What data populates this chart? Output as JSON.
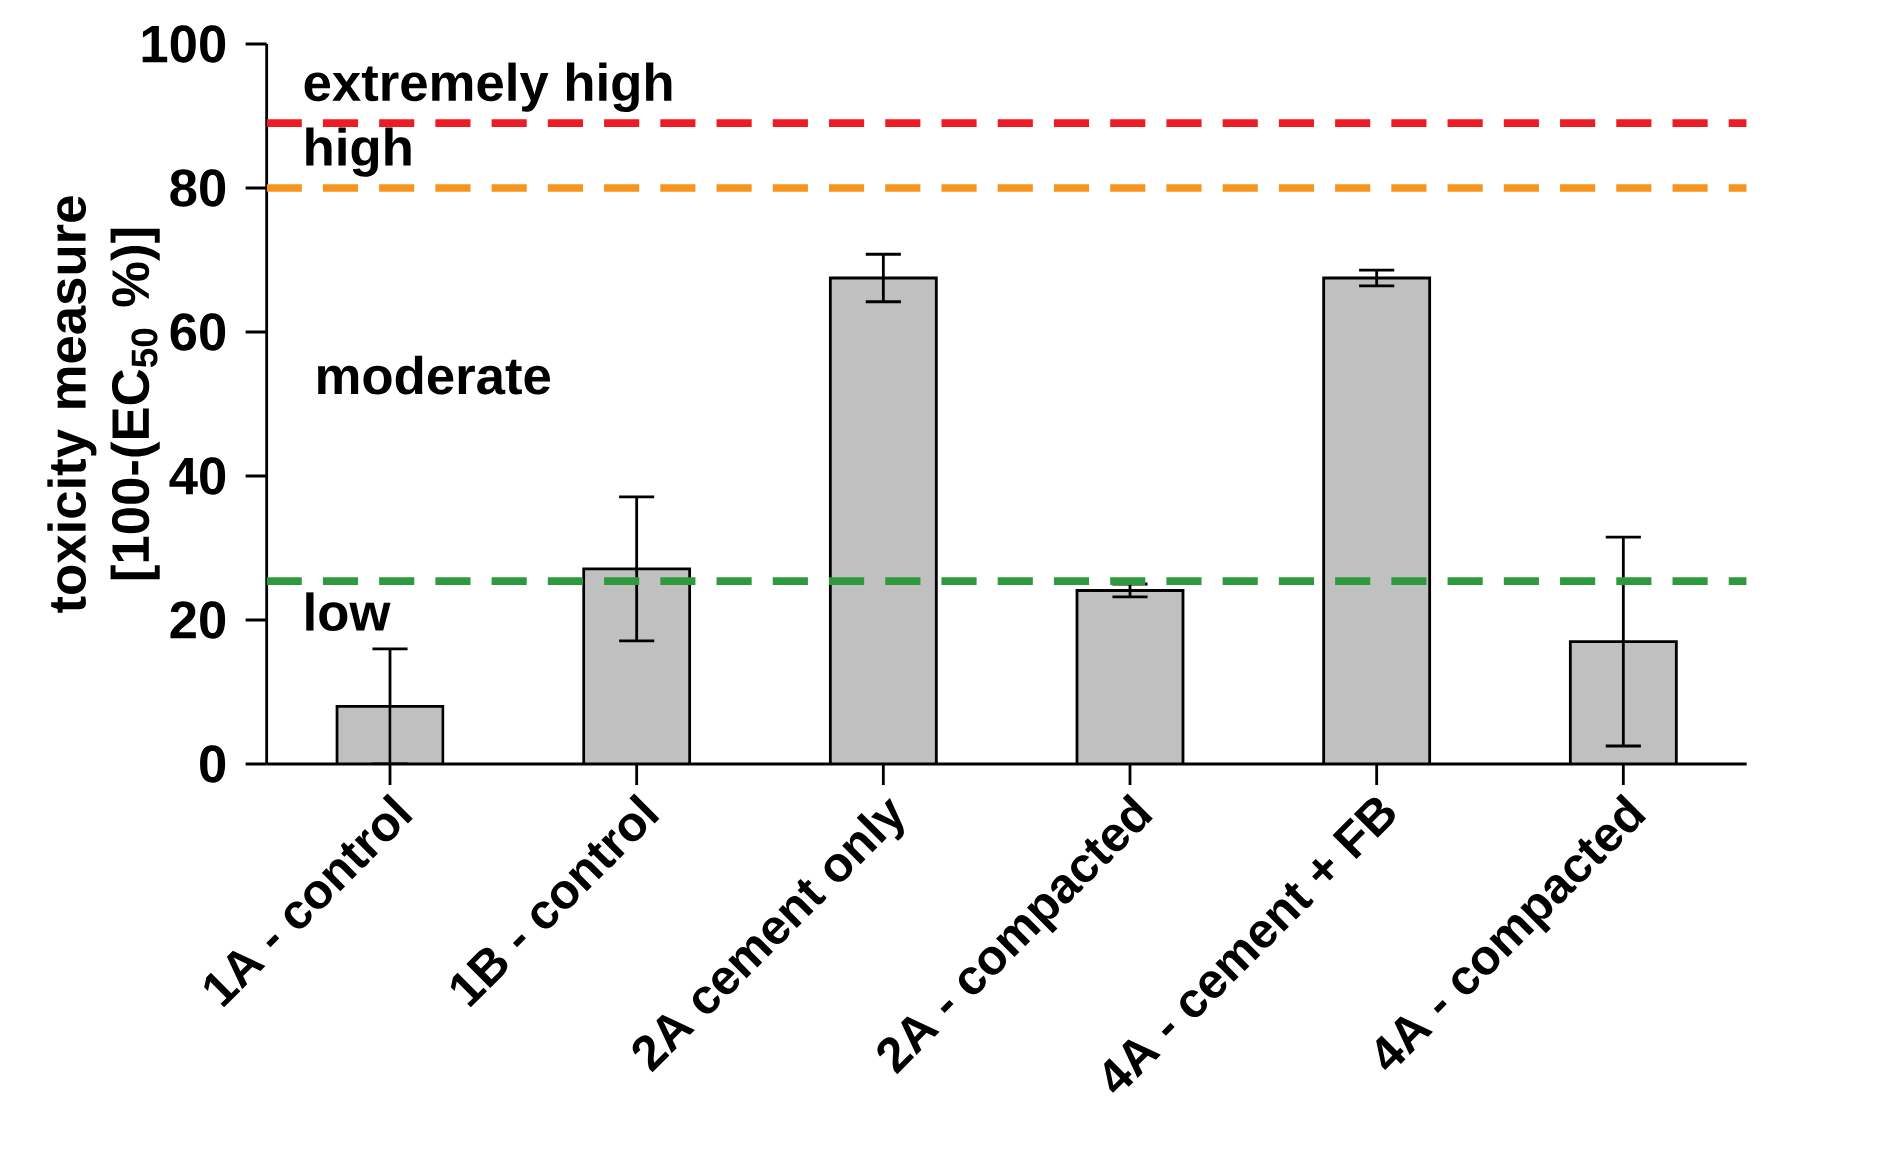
{
  "chart_data": {
    "type": "bar",
    "ylabel": "toxicity measure [100-(EC$_{50}$ %)]",
    "categories": [
      "1A - control",
      "1B - control",
      "2A cement only",
      "2A - compacted",
      "4A - cement + FB",
      "4A - compacted"
    ],
    "values": [
      8.0,
      27.1,
      67.5,
      24.1,
      67.5,
      17.0
    ],
    "errors": [
      8.0,
      10.0,
      3.3,
      0.9,
      1.1,
      14.5
    ],
    "colors": [
      "#c0c0c0",
      "#c0c0c0",
      "#c0c0c0",
      "#c0c0c0",
      "#c0c0c0",
      "#c0c0c0"
    ],
    "ylim": [
      0,
      100
    ],
    "yticks": [
      0,
      20,
      40,
      60,
      80,
      100
    ],
    "ref_lines": [
      {
        "axis": "y",
        "value": 89,
        "label": "extremely high",
        "color": "#ed1c24",
        "line_style": "dashed"
      },
      {
        "axis": "y",
        "value": 80,
        "label": "high",
        "color": "#f7941d",
        "line_style": "dashed"
      },
      {
        "axis": "y",
        "value": 25.4,
        "label": "low",
        "color": "#2e9a3e",
        "line_style": "dashed"
      }
    ],
    "annotations": [
      "moderate"
    ],
    "grid": false,
    "legend": false
  }
}
